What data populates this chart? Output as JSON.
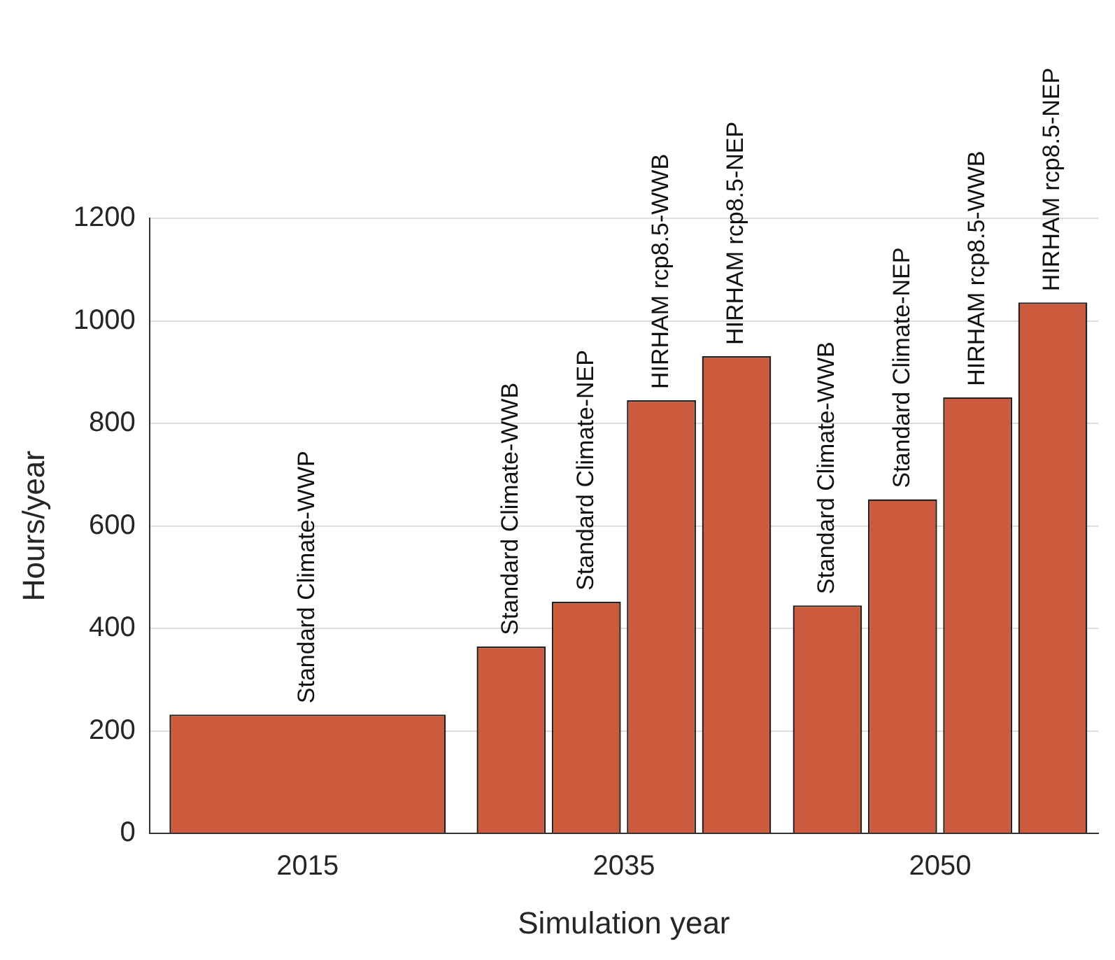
{
  "chart_data": {
    "type": "bar",
    "xlabel": "Simulation year",
    "ylabel": "Hours/year",
    "categories": [
      "2015",
      "2035",
      "2050"
    ],
    "series": [
      {
        "name": "Standard Climate-WWP",
        "color": "#cc5a3c",
        "values": [
          232,
          null,
          null
        ]
      },
      {
        "name": "Standard Climate-WWB",
        "color": "#cc5a3c",
        "values": [
          null,
          365,
          445
        ]
      },
      {
        "name": "Standard Climate-NEP",
        "color": "#cc5a3c",
        "values": [
          null,
          452,
          652
        ]
      },
      {
        "name": "HIRHAM rcp8.5-WWB",
        "color": "#cc5a3c",
        "values": [
          null,
          845,
          851
        ]
      },
      {
        "name": "HIRHAM rcp8.5-NEP",
        "color": "#cc5a3c",
        "values": [
          null,
          931,
          1036
        ]
      }
    ],
    "ylim": [
      0,
      1200
    ],
    "yticks": [
      0,
      200,
      400,
      600,
      800,
      1000,
      1200
    ],
    "grid": "y",
    "legend": false
  }
}
